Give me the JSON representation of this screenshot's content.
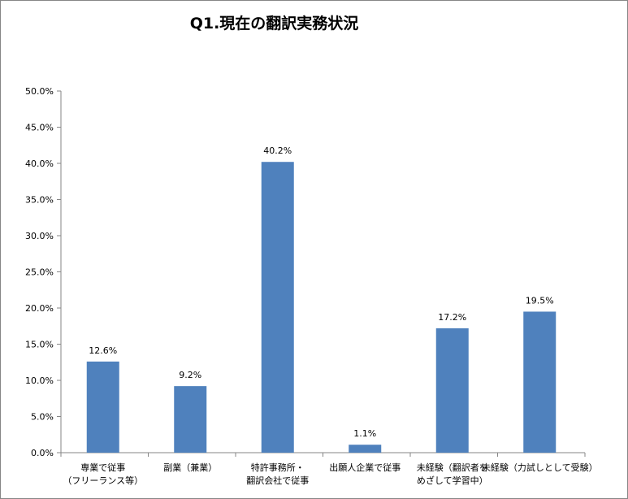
{
  "chart_data": {
    "type": "bar",
    "title": "Q1.現在の翻訳実務状況",
    "categories": [
      [
        "専業で従事",
        "（フリーランス等）"
      ],
      [
        "副業（兼業）"
      ],
      [
        "特許事務所・",
        "翻訳会社で従事"
      ],
      [
        "出願人企業で従事"
      ],
      [
        "未経験（翻訳者を",
        "めざして学習中）"
      ],
      [
        "未経験（力試しとして受験）"
      ]
    ],
    "values": [
      12.6,
      9.2,
      40.2,
      1.1,
      17.2,
      19.5
    ],
    "data_labels": [
      "12.6%",
      "9.2%",
      "40.2%",
      "1.1%",
      "17.2%",
      "19.5%"
    ],
    "yticks": [
      "0.0%",
      "5.0%",
      "10.0%",
      "15.0%",
      "20.0%",
      "25.0%",
      "30.0%",
      "35.0%",
      "40.0%",
      "45.0%",
      "50.0%"
    ],
    "ylim": [
      0,
      50
    ],
    "ystep": 5,
    "xlabel": "",
    "ylabel": "",
    "grid": false,
    "legend": "none",
    "bar_color": "#4f81bd"
  }
}
